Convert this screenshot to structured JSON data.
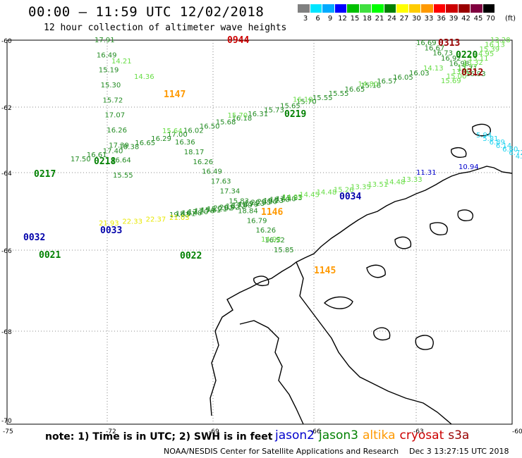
{
  "title": "00:00 – 11:59 UTC 12/02/2018",
  "subtitle": "12 hour collection of altimeter wave heights",
  "colorbar": {
    "unit": "(ft)",
    "colors": [
      "#808080",
      "#00e5ff",
      "#00aaff",
      "#0000ff",
      "#00c000",
      "#40e040",
      "#00ff00",
      "#008000",
      "#ffff00",
      "#ffcc00",
      "#ff9900",
      "#ff0000",
      "#cc0000",
      "#990000",
      "#800040",
      "#000000"
    ],
    "labels": [
      "3",
      "6",
      "9",
      "12",
      "15",
      "18",
      "21",
      "24",
      "27",
      "30",
      "33",
      "36",
      "39",
      "42",
      "45",
      "70"
    ]
  },
  "axis": {
    "lat_labels": [
      "-60",
      "-62",
      "-64",
      "-66",
      "-68",
      "-70"
    ],
    "lon_labels": [
      "-75",
      "-72",
      "-69",
      "-66",
      "-63",
      "-60"
    ]
  },
  "tracks": [
    {
      "color": "#228b22",
      "values": [
        "17.91",
        "16.49",
        "15.19",
        "15.30",
        "15.72",
        "17.07",
        "16.26",
        "17.39",
        "16.64",
        "15.55"
      ]
    },
    {
      "color": "#66dd44",
      "values": [
        "14.21",
        "14.36"
      ]
    },
    {
      "color": "#228b22",
      "values": [
        "16.36",
        "18.17",
        "16.26",
        "16.49",
        "17.63",
        "17.34",
        "15.83",
        "18.84",
        "16.79",
        "16.26",
        "16.52",
        "15.85"
      ]
    },
    {
      "color": "#66dd44",
      "values": [
        "14.92"
      ]
    },
    {
      "color": "#228b22",
      "values": [
        "17.50",
        "16.61",
        "17.40",
        "18.38",
        "16.65",
        "16.29",
        "17.00",
        "16.02",
        "16.50",
        "15.68",
        "16.18",
        "16.31",
        "15.73",
        "15.65",
        "15.70",
        "15.55",
        "15.55",
        "16.65",
        "15.18",
        "16.57",
        "16.05",
        "16.03"
      ]
    },
    {
      "color": "#66dd44",
      "values": [
        "15.64",
        "15.70",
        "16.10",
        "14.80",
        "14.13"
      ]
    },
    {
      "color": "#228b22",
      "values": [
        "16.69",
        "16.67",
        "16.73",
        "16.92",
        "16.98",
        "17.71",
        "16.93"
      ]
    },
    {
      "color": "#66dd44",
      "values": [
        "15.69",
        "15.00",
        "13.42",
        "13.77",
        "13.32",
        "13.11",
        "14.95",
        "15.39",
        "16.13",
        "13.28"
      ]
    },
    {
      "color": "#1ed2ee",
      "values": [
        "5.94",
        "5.81",
        "6.89",
        "6.14",
        "6.60",
        "6.72",
        "4.09",
        "3.11"
      ]
    },
    {
      "color": "#0000cd",
      "values": [
        "11.31",
        "10.94"
      ]
    },
    {
      "color": "#228b22",
      "values": [
        "19.63",
        "18.91",
        "16.48",
        "17.20",
        "17.76",
        "15.61",
        "15.21",
        "20.62",
        "20.92",
        "16.72",
        "17.09",
        "18.79",
        "19.23",
        "20.35",
        "20.50",
        "19.23",
        "18.60",
        "17.40",
        "15.83"
      ]
    },
    {
      "color": "#66dd44",
      "values": [
        "14.05",
        "14.45",
        "14.48",
        "15.26",
        "13.35",
        "13.51",
        "14.48",
        "13.33"
      ]
    },
    {
      "color": "#e8e800",
      "values": [
        "21.93",
        "22.33",
        "22.37",
        "21.03"
      ]
    }
  ],
  "time_labels": [
    {
      "time": "0944",
      "color": "#cc0000"
    },
    {
      "time": "0313",
      "color": "#990000"
    },
    {
      "time": "0220",
      "color": "#008000"
    },
    {
      "time": "0312",
      "color": "#990000"
    },
    {
      "time": "1147",
      "color": "#ff9900"
    },
    {
      "time": "0219",
      "color": "#008000"
    },
    {
      "time": "0218",
      "color": "#008000"
    },
    {
      "time": "0217",
      "color": "#008000"
    },
    {
      "time": "0034",
      "color": "#0000aa"
    },
    {
      "time": "1146",
      "color": "#ff9900"
    },
    {
      "time": "0033",
      "color": "#0000aa"
    },
    {
      "time": "0032",
      "color": "#0000aa"
    },
    {
      "time": "0021",
      "color": "#008000"
    },
    {
      "time": "0022",
      "color": "#008000"
    },
    {
      "time": "1145",
      "color": "#ff9900"
    }
  ],
  "note": "note:  1) Time is in UTC;  2) SWH is in feet",
  "legend": [
    {
      "name": "jason2",
      "color": "#0000cc"
    },
    {
      "name": "jason3",
      "color": "#008000"
    },
    {
      "name": "altika",
      "color": "#ff9900"
    },
    {
      "name": "cryosat",
      "color": "#cc0000"
    },
    {
      "name": "s3a",
      "color": "#990000"
    }
  ],
  "footer_left": "NOAA/NESDIS Center for Satellite Applications and Research",
  "footer_right": "Dec  3 13:27:15 UTC 2018"
}
